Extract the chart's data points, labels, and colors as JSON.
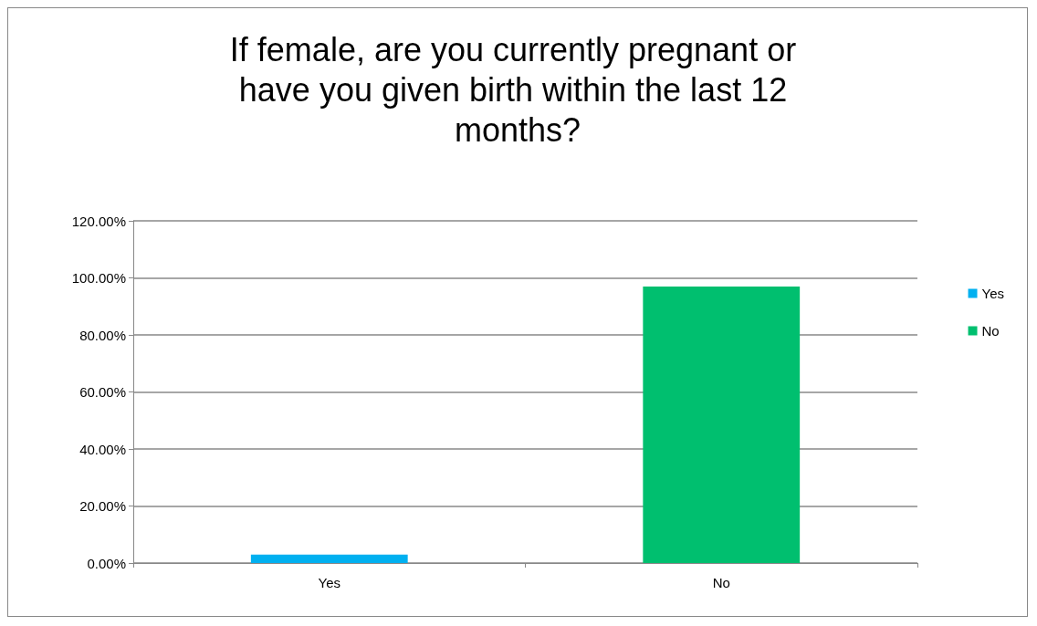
{
  "chart_data": {
    "type": "bar",
    "title": "If female, are you currently pregnant or have you given birth within the last 12 months?",
    "categories": [
      "Yes",
      "No"
    ],
    "series": [
      {
        "name": "Yes",
        "color": "#00b0f0",
        "values": [
          3,
          null
        ]
      },
      {
        "name": "No",
        "color": "#00bf6f",
        "values": [
          null,
          97
        ]
      }
    ],
    "ylim": [
      0,
      120
    ],
    "yticks": [
      {
        "value": 0,
        "label": "0.00%"
      },
      {
        "value": 20,
        "label": "20.00%"
      },
      {
        "value": 40,
        "label": "40.00%"
      },
      {
        "value": 60,
        "label": "60.00%"
      },
      {
        "value": 80,
        "label": "80.00%"
      },
      {
        "value": 100,
        "label": "100.00%"
      },
      {
        "value": 120,
        "label": "120.00%"
      }
    ],
    "grid": "y",
    "legend": "right"
  }
}
